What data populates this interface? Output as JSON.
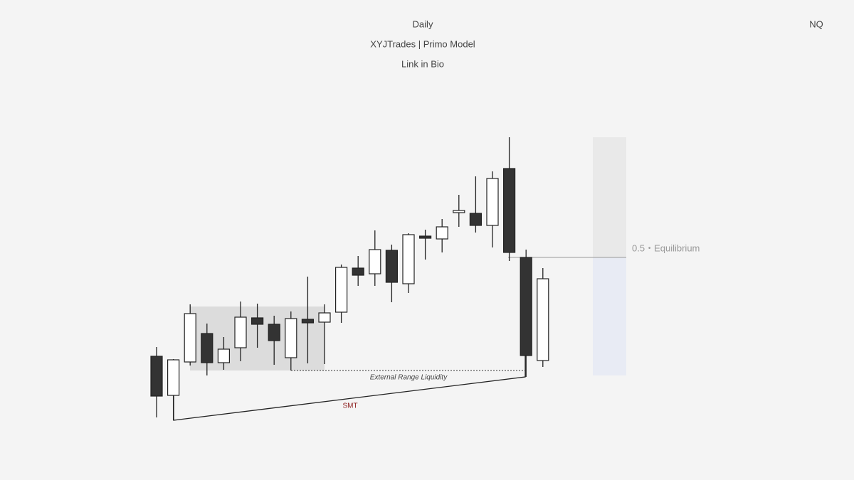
{
  "chart_data": {
    "type": "candlestick",
    "title": "Daily",
    "subtitle": "XYJTrades | Primo Model",
    "caption": "Link in Bio",
    "symbol": "NQ",
    "annotations": [
      "External Range Liquidity",
      "SMT",
      "0.5・Equilibrium"
    ],
    "categories": [
      null,
      null,
      null,
      null,
      null,
      null,
      null,
      null,
      null,
      null,
      null,
      null,
      null,
      null,
      null,
      null,
      null,
      null,
      null,
      null,
      null,
      null,
      null,
      null
    ],
    "open": [
      99,
      44,
      91,
      131,
      90,
      111,
      153,
      144,
      97,
      151,
      147,
      161,
      223,
      215,
      248,
      201,
      268,
      264,
      301,
      300,
      283,
      363,
      238,
      93
    ],
    "high": [
      112,
      95,
      172,
      145,
      126,
      176,
      173,
      156,
      162,
      211,
      172,
      228,
      240,
      276,
      256,
      272,
      277,
      292,
      326,
      352,
      359,
      407,
      249,
      223
    ],
    "low": [
      13,
      9,
      86,
      72,
      80,
      92,
      111,
      87,
      79,
      89,
      88,
      146,
      198,
      198,
      175,
      188,
      235,
      245,
      281,
      273,
      252,
      233,
      70,
      84
    ],
    "close": [
      43,
      94,
      159,
      90,
      109,
      154,
      144,
      121,
      152,
      146,
      160,
      224,
      213,
      249,
      203,
      270,
      265,
      281,
      304,
      283,
      349,
      245,
      100,
      208
    ],
    "up_color": "#ffffff",
    "down_color": "#333333",
    "ylim": [
      0,
      420
    ]
  }
}
